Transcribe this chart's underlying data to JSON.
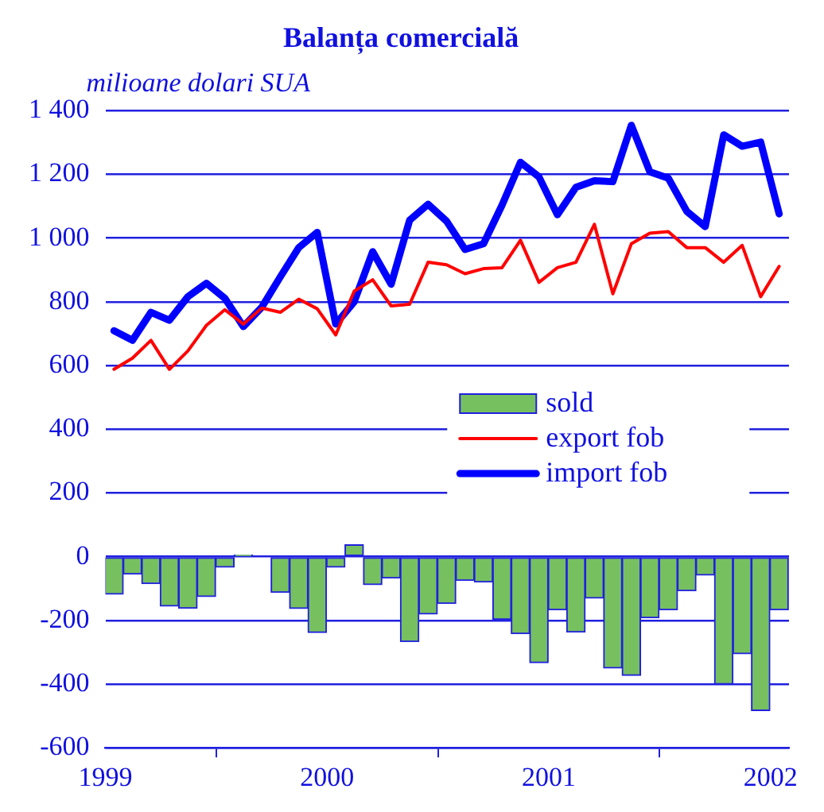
{
  "chart_data": {
    "type": "bar",
    "title": "Balanța comercială",
    "ylabel": "milioane dolari SUA",
    "x": [
      "1999-01-15",
      "1999-02-15",
      "1999-03-15",
      "1999-04-15",
      "1999-05-15",
      "1999-06-15",
      "1999-07-15",
      "1999-08-15",
      "1999-09-15",
      "1999-10-15",
      "1999-11-15",
      "1999-12-15",
      "2000-01-15",
      "2000-02-15",
      "2000-03-15",
      "2000-04-15",
      "2000-05-15",
      "2000-06-15",
      "2000-07-15",
      "2000-08-15",
      "2000-09-15",
      "2000-10-15",
      "2000-11-15",
      "2000-12-15",
      "2001-01-15",
      "2001-02-15",
      "2001-03-15",
      "2001-04-15",
      "2001-05-15",
      "2001-06-15",
      "2001-07-15",
      "2001-08-15",
      "2001-09-15",
      "2001-10-15",
      "2001-11-15",
      "2001-12-15",
      "2002-01-15"
    ],
    "series": [
      {
        "name": "sold",
        "color": "#77c060",
        "values": [
          -118,
          -55,
          -85,
          -155,
          -162,
          -125,
          -33,
          5,
          0,
          -112,
          -163,
          -238,
          -33,
          37,
          -88,
          -67,
          -267,
          -180,
          -147,
          -75,
          -80,
          -197,
          -242,
          -333,
          -167,
          -237,
          -130,
          -350,
          -373,
          -192,
          -167,
          -107,
          -58,
          -400,
          -305,
          -483,
          -167
        ]
      },
      {
        "name": "export fob",
        "type": "line",
        "color": "#ff0000",
        "values": [
          588,
          623,
          679,
          588,
          646,
          726,
          775,
          730,
          780,
          767,
          808,
          778,
          696,
          833,
          869,
          787,
          792,
          924,
          916,
          888,
          904,
          907,
          993,
          861,
          907,
          924,
          1043,
          825,
          982,
          1015,
          1020,
          970,
          970,
          924,
          977,
          816,
          911
        ]
      },
      {
        "name": "import fob",
        "type": "line",
        "color": "#0000ff",
        "values": [
          709,
          679,
          767,
          742,
          816,
          858,
          811,
          722,
          783,
          878,
          970,
          1018,
          730,
          800,
          957,
          855,
          1056,
          1106,
          1053,
          964,
          982,
          1103,
          1238,
          1192,
          1073,
          1159,
          1180,
          1177,
          1354,
          1208,
          1188,
          1084,
          1036,
          1324,
          1288,
          1301,
          1076
        ]
      }
    ],
    "xlim": [
      "1999-01-01",
      "2002-02-01"
    ],
    "xticks": [
      {
        "value": "1999-01-01",
        "label": "1999"
      },
      {
        "value": "2000-01-01",
        "label": "2000"
      },
      {
        "value": "2001-01-01",
        "label": "2001"
      },
      {
        "value": "2002-01-01",
        "label": "2002"
      }
    ],
    "ylim": [
      -600,
      1400
    ],
    "yticks": [
      -600,
      -400,
      -200,
      0,
      200,
      400,
      600,
      800,
      {
        "value": 1000,
        "label": "1 000"
      },
      {
        "value": 1200,
        "label": "1 200"
      },
      {
        "value": 1400,
        "label": "1 400"
      }
    ],
    "grid": "y",
    "legend": "right",
    "marker": "none",
    "line_style": "solid"
  }
}
